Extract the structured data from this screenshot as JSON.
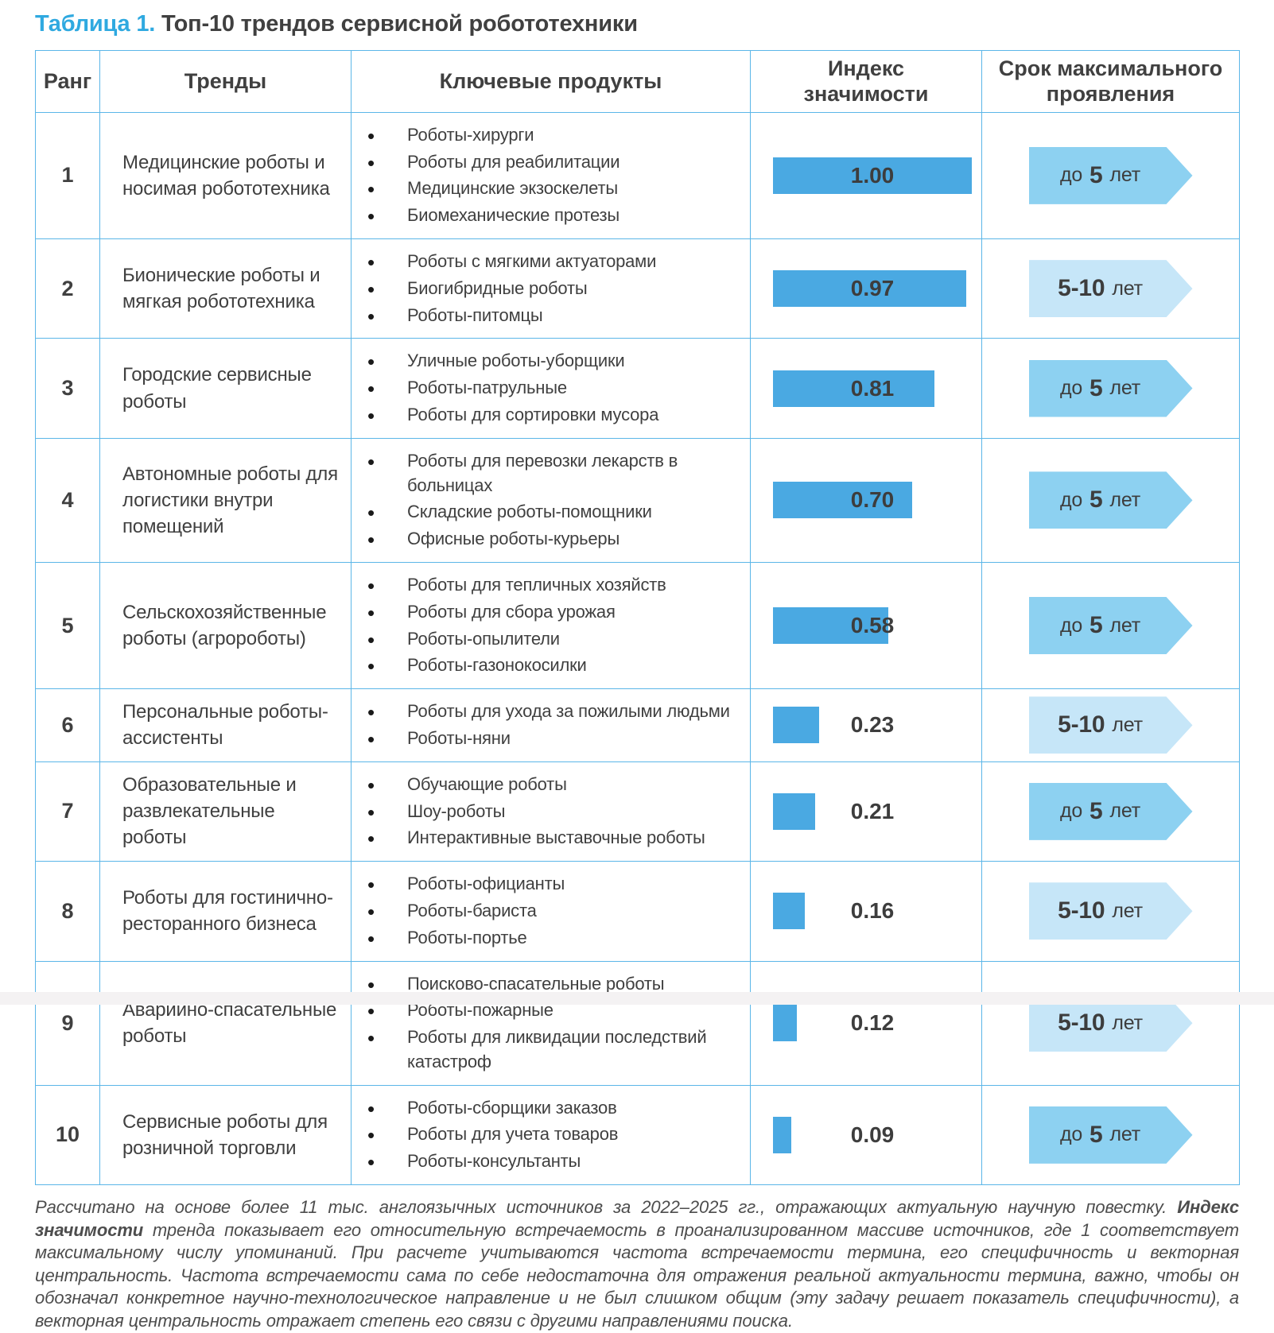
{
  "title": {
    "label": "Таблица 1.",
    "text": "Топ-10 трендов сервисной робототехники"
  },
  "colors": {
    "accent": "#2FA9E0",
    "border": "#5BB6E8",
    "bar": "#4AA9E2",
    "arrow_near": "#8DD1F1",
    "arrow_far": "#C6E6F8",
    "text": "#404040",
    "strip": "#F4F2F3"
  },
  "table": {
    "headers": {
      "rank": "Ранг",
      "trend": "Тренды",
      "products": "Ключевые продукты",
      "index": "Индекс\nзначимости",
      "term": "Срок максимального\nпроявления"
    },
    "rows": [
      {
        "rank": "1",
        "trend": "Медицинские роботы и носимая робототехника",
        "products": [
          "Роботы-хирурги",
          "Роботы для реабилитации",
          "Медицинские экзоскелеты",
          "Биомеханические протезы"
        ],
        "index_label": "1.00",
        "index_value": 1.0,
        "term": {
          "pre": "до",
          "bold": "5",
          "post": "лет",
          "variant": "near"
        }
      },
      {
        "rank": "2",
        "trend": "Бионические роботы и мягкая робототехника",
        "products": [
          "Роботы с мягкими актуаторами",
          "Биогибридные роботы",
          "Роботы-питомцы"
        ],
        "index_label": "0.97",
        "index_value": 0.97,
        "term": {
          "pre": "",
          "bold": "5-10",
          "post": "лет",
          "variant": "far"
        }
      },
      {
        "rank": "3",
        "trend": "Городские сервисные роботы",
        "products": [
          "Уличные роботы-уборщики",
          "Роботы-патрульные",
          "Роботы для сортировки мусора"
        ],
        "index_label": "0.81",
        "index_value": 0.81,
        "term": {
          "pre": "до",
          "bold": "5",
          "post": "лет",
          "variant": "near"
        }
      },
      {
        "rank": "4",
        "trend": "Автономные роботы для логистики внутри помещений",
        "products": [
          "Роботы для перевозки лекарств в больницах",
          "Складские роботы-помощники",
          "Офисные роботы-курьеры"
        ],
        "index_label": "0.70",
        "index_value": 0.7,
        "term": {
          "pre": "до",
          "bold": "5",
          "post": "лет",
          "variant": "near"
        }
      },
      {
        "rank": "5",
        "trend": "Сельскохозяйственные роботы (агророботы)",
        "products": [
          "Роботы для тепличных хозяйств",
          "Роботы для сбора урожая",
          "Роботы-опылители",
          "Роботы-газонокосилки"
        ],
        "index_label": "0.58",
        "index_value": 0.58,
        "term": {
          "pre": "до",
          "bold": "5",
          "post": "лет",
          "variant": "near"
        }
      },
      {
        "rank": "6",
        "trend": "Персональные роботы-ассистенты",
        "products": [
          "Роботы для ухода за пожилыми людьми",
          "Роботы-няни"
        ],
        "index_label": "0.23",
        "index_value": 0.23,
        "term": {
          "pre": "",
          "bold": "5-10",
          "post": "лет",
          "variant": "far"
        }
      },
      {
        "rank": "7",
        "trend": "Образовательные и развлекательные роботы",
        "products": [
          "Обучающие роботы",
          "Шоу-роботы",
          "Интерактивные выставочные роботы"
        ],
        "index_label": "0.21",
        "index_value": 0.21,
        "term": {
          "pre": "до",
          "bold": "5",
          "post": "лет",
          "variant": "near"
        }
      },
      {
        "rank": "8",
        "trend": "Роботы для гостинично-ресторанного бизнеса",
        "products": [
          "Роботы-официанты",
          "Роботы-бариста",
          "Роботы-портье"
        ],
        "index_label": "0.16",
        "index_value": 0.16,
        "term": {
          "pre": "",
          "bold": "5-10",
          "post": "лет",
          "variant": "far"
        }
      },
      {
        "rank": "9",
        "trend": "Аварийно-спасательные роботы",
        "products": [
          "Поисково-спасательные роботы",
          "Роботы-пожарные",
          "Роботы для ликвидации последствий катастроф"
        ],
        "index_label": "0.12",
        "index_value": 0.12,
        "term": {
          "pre": "",
          "bold": "5-10",
          "post": "лет",
          "variant": "far"
        }
      },
      {
        "rank": "10",
        "trend": "Сервисные роботы для розничной торговли",
        "products": [
          "Роботы-сборщики заказов",
          "Роботы для учета товаров",
          "Роботы-консультанты"
        ],
        "index_label": "0.09",
        "index_value": 0.09,
        "term": {
          "pre": "до",
          "bold": "5",
          "post": "лет",
          "variant": "near"
        }
      }
    ]
  },
  "footnote": {
    "part1": "Рассчитано на основе более 11 тыс. англоязычных источников за 2022–2025 гг., отражающих актуальную научную повестку. ",
    "bold_term": "Индекс значимости",
    "part2": " тренда показывает его относительную встречаемость в проанализированном массиве источников, где 1 соответствует максимальному числу упоминаний. При расчете учитываются частота встречаемости термина, его специфичность и векторная центральность. Частота встречаемости сама по себе недостаточна для отражения реальной актуальности термина, важно, чтобы он обозначал конкретное научно-технологическое направление и не был слишком общим (эту задачу решает показатель специфичности), а векторная центральность отражает степень его связи с другими направлениями поиска."
  }
}
